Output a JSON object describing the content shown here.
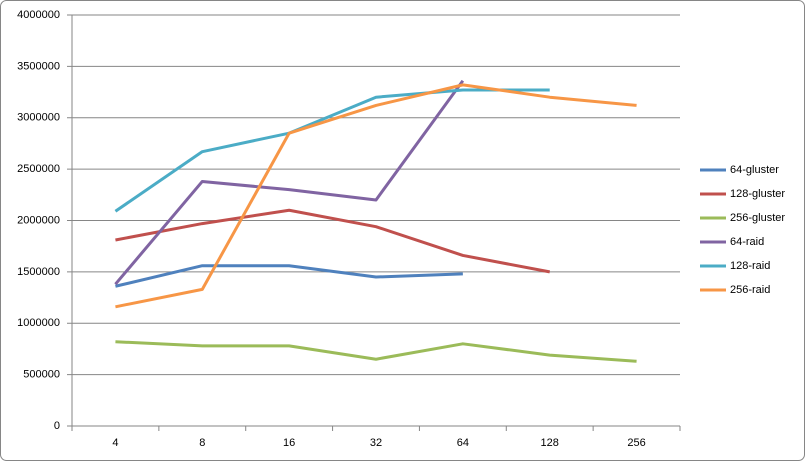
{
  "chart_data": {
    "type": "line",
    "categories": [
      "4",
      "8",
      "16",
      "32",
      "64",
      "128",
      "256"
    ],
    "series": [
      {
        "name": "64-gluster",
        "color": "#4f81bd",
        "values": [
          1360000,
          1560000,
          1560000,
          1450000,
          1480000,
          null,
          null
        ]
      },
      {
        "name": "128-gluster",
        "color": "#c0504d",
        "values": [
          1810000,
          1970000,
          2100000,
          1940000,
          1660000,
          1500000,
          null
        ]
      },
      {
        "name": "256-gluster",
        "color": "#9bbb59",
        "values": [
          820000,
          780000,
          780000,
          650000,
          800000,
          690000,
          630000
        ]
      },
      {
        "name": "64-raid",
        "color": "#8064a2",
        "values": [
          1380000,
          2380000,
          2300000,
          2200000,
          3360000,
          null,
          null
        ]
      },
      {
        "name": "128-raid",
        "color": "#4bacc6",
        "values": [
          2090000,
          2670000,
          2850000,
          3200000,
          3270000,
          3270000,
          null
        ]
      },
      {
        "name": "256-raid",
        "color": "#f79646",
        "values": [
          1160000,
          1330000,
          2850000,
          3120000,
          3320000,
          3200000,
          3120000
        ]
      }
    ],
    "ylim": [
      0,
      4000000
    ],
    "yticks": [
      0,
      500000,
      1000000,
      1500000,
      2000000,
      2500000,
      3000000,
      3500000,
      4000000
    ],
    "grid": true,
    "legend": "right"
  }
}
